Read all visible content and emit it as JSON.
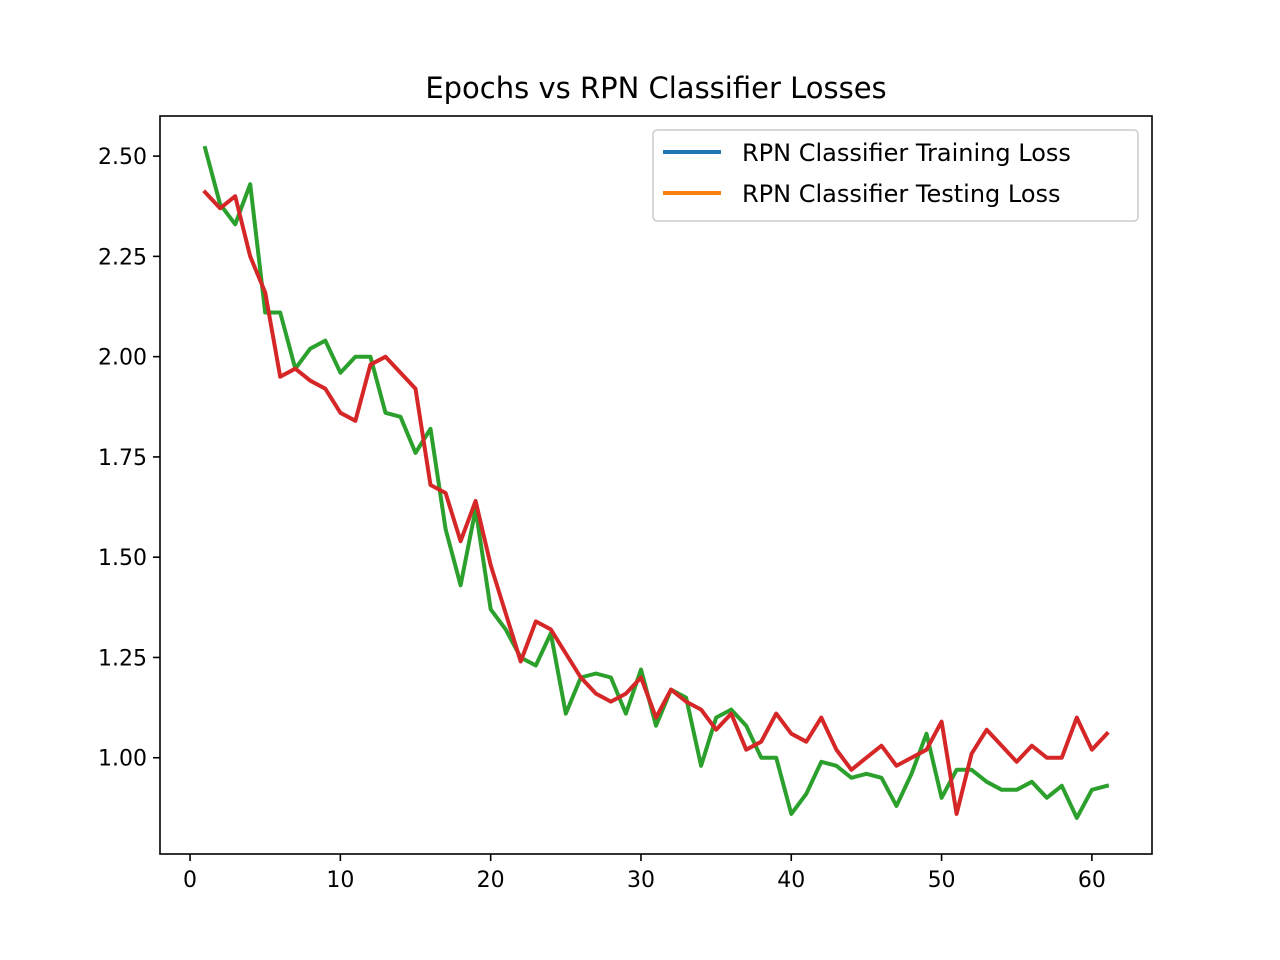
{
  "chart_data": {
    "type": "line",
    "title": "Epochs vs  RPN Classifier Losses",
    "xlabel": "",
    "ylabel": "",
    "xlim": [
      -2,
      64
    ],
    "ylim": [
      0.76,
      2.6
    ],
    "xticks": [
      "0",
      "10",
      "20",
      "30",
      "40",
      "50",
      "60"
    ],
    "xtick_values": [
      0,
      10,
      20,
      30,
      40,
      50,
      60
    ],
    "yticks": [
      "1.00",
      "1.25",
      "1.50",
      "1.75",
      "2.00",
      "2.25",
      "2.50"
    ],
    "ytick_values": [
      1.0,
      1.25,
      1.5,
      1.75,
      2.0,
      2.25,
      2.5
    ],
    "legend_position": "top-right",
    "grid": false,
    "x": [
      1,
      2,
      3,
      4,
      5,
      6,
      7,
      8,
      9,
      10,
      11,
      12,
      13,
      14,
      15,
      16,
      17,
      18,
      19,
      20,
      21,
      22,
      23,
      24,
      25,
      26,
      27,
      28,
      29,
      30,
      31,
      32,
      33,
      34,
      35,
      36,
      37,
      38,
      39,
      40,
      41,
      42,
      43,
      44,
      45,
      46,
      47,
      48,
      49,
      50,
      51,
      52,
      53,
      54,
      55,
      56,
      57,
      58,
      59,
      60,
      61
    ],
    "series": [
      {
        "name": "RPN Classifier Training Loss",
        "legend_color": "#1f77b4",
        "color": "#2ca02c",
        "values": [
          2.52,
          2.38,
          2.33,
          2.43,
          2.11,
          2.11,
          1.97,
          2.02,
          2.04,
          1.96,
          2.0,
          2.0,
          1.86,
          1.85,
          1.76,
          1.82,
          1.57,
          1.43,
          1.62,
          1.37,
          1.32,
          1.25,
          1.23,
          1.31,
          1.11,
          1.2,
          1.21,
          1.2,
          1.11,
          1.22,
          1.08,
          1.17,
          1.15,
          0.98,
          1.1,
          1.12,
          1.08,
          1.0,
          1.0,
          0.86,
          0.91,
          0.99,
          0.98,
          0.95,
          0.96,
          0.95,
          0.88,
          0.96,
          1.06,
          0.9,
          0.97,
          0.97,
          0.94,
          0.92,
          0.92,
          0.94,
          0.9,
          0.93,
          0.85,
          0.92,
          0.93
        ]
      },
      {
        "name": "RPN Classifier Testing Loss",
        "legend_color": "#ff7f0e",
        "color": "#d62728",
        "values": [
          2.41,
          2.37,
          2.4,
          2.25,
          2.16,
          1.95,
          1.97,
          1.94,
          1.92,
          1.86,
          1.84,
          1.98,
          2.0,
          1.96,
          1.92,
          1.68,
          1.66,
          1.54,
          1.64,
          1.48,
          1.36,
          1.24,
          1.34,
          1.32,
          1.26,
          1.2,
          1.16,
          1.14,
          1.16,
          1.2,
          1.1,
          1.17,
          1.14,
          1.12,
          1.07,
          1.11,
          1.02,
          1.04,
          1.11,
          1.06,
          1.04,
          1.1,
          1.02,
          0.97,
          1.0,
          1.03,
          0.98,
          1.0,
          1.02,
          1.09,
          0.86,
          1.01,
          1.07,
          1.03,
          0.99,
          1.03,
          1.0,
          1.0,
          1.1,
          1.02,
          1.06
        ]
      }
    ]
  }
}
